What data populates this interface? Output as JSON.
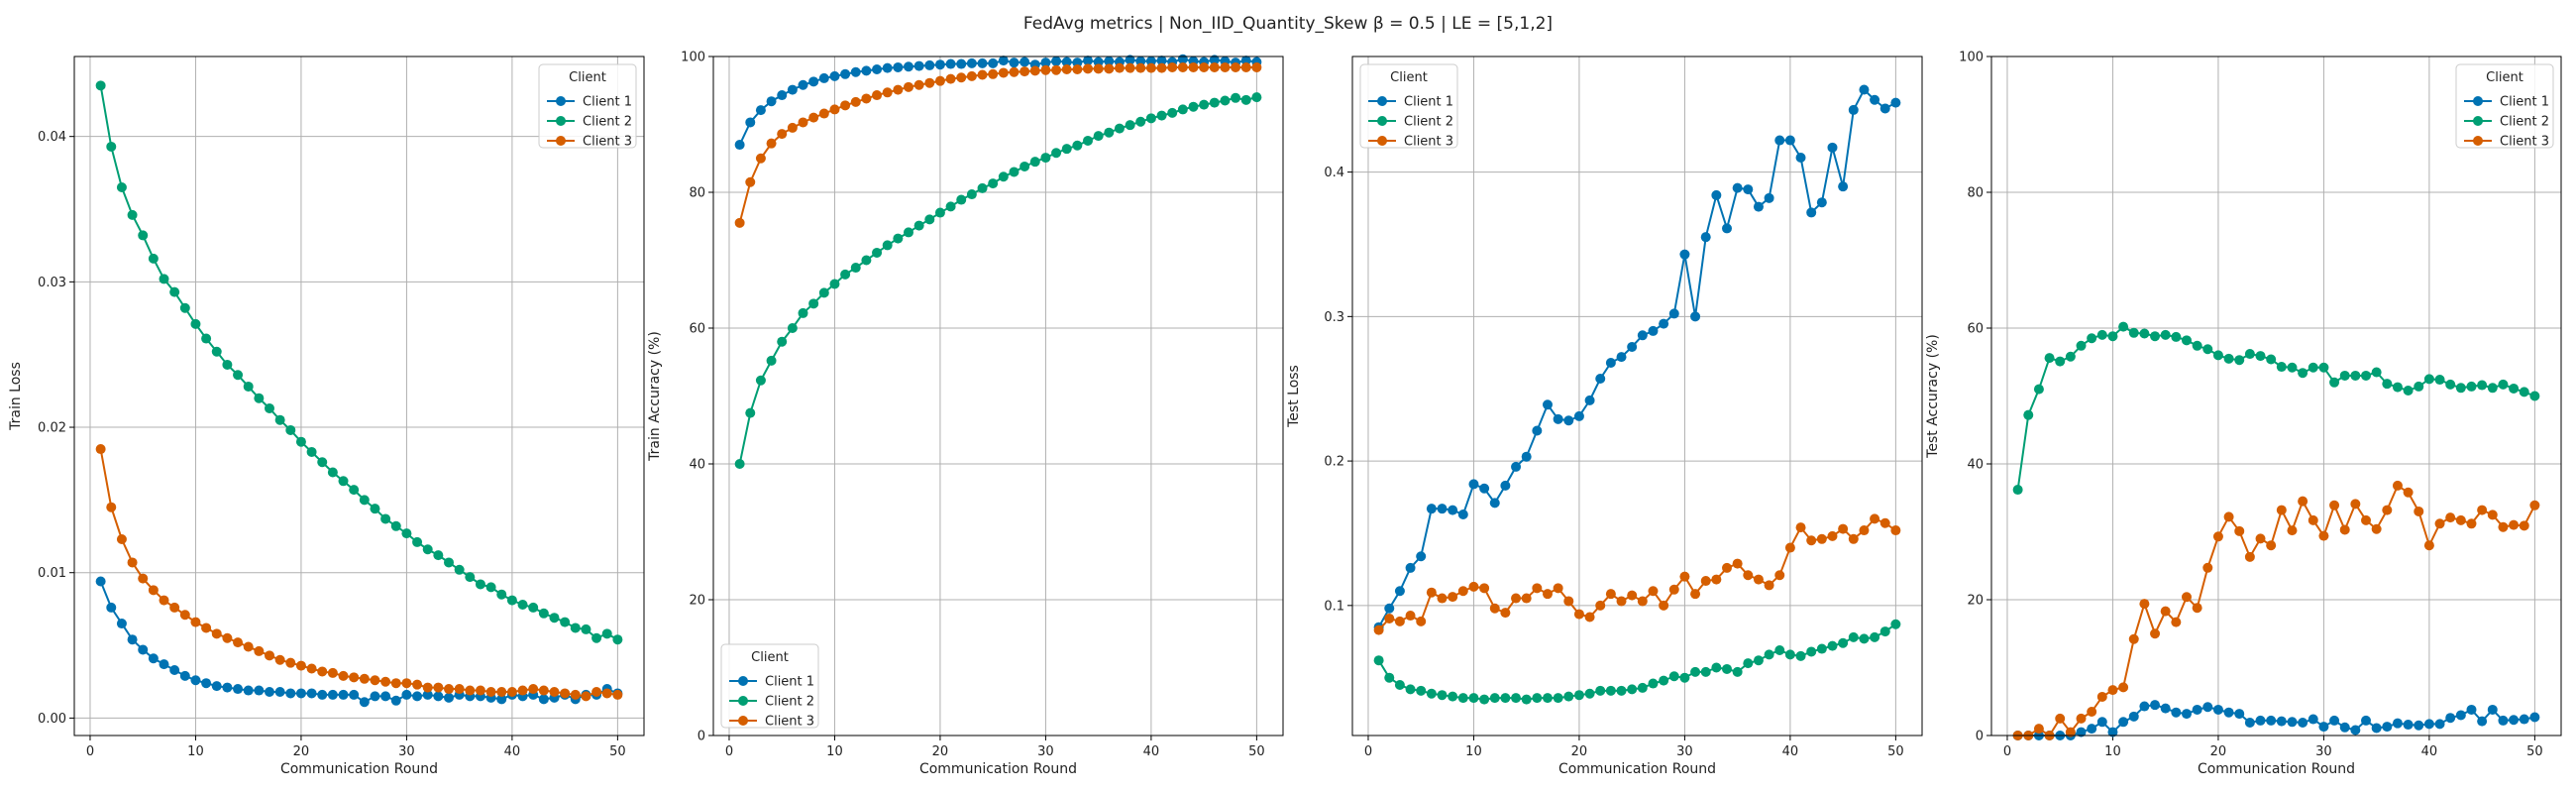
{
  "suptitle": "FedAvg metrics | Non_IID_Quantity_Skew β = 0.5 | LE = [5,1,2]",
  "colors": {
    "Client 1": "#0072b2",
    "Client 2": "#009e73",
    "Client 3": "#d55e00"
  },
  "chart_data": [
    {
      "type": "line",
      "xlabel": "Communication Round",
      "ylabel": "Train Loss",
      "xlim": [
        -1.5,
        52.5
      ],
      "ylim": [
        -0.0012,
        0.0455
      ],
      "xticks": [
        0,
        10,
        20,
        30,
        40,
        50
      ],
      "yticks": [
        0.0,
        0.01,
        0.02,
        0.03,
        0.04
      ],
      "ytick_labels": [
        "0.00",
        "0.01",
        "0.02",
        "0.03",
        "0.04"
      ],
      "legend": {
        "title": "Client",
        "position": "top-right"
      },
      "grid": true,
      "x": [
        1,
        2,
        3,
        4,
        5,
        6,
        7,
        8,
        9,
        10,
        11,
        12,
        13,
        14,
        15,
        16,
        17,
        18,
        19,
        20,
        21,
        22,
        23,
        24,
        25,
        26,
        27,
        28,
        29,
        30,
        31,
        32,
        33,
        34,
        35,
        36,
        37,
        38,
        39,
        40,
        41,
        42,
        43,
        44,
        45,
        46,
        47,
        48,
        49,
        50
      ],
      "series": [
        {
          "name": "Client 1",
          "values": [
            0.0094,
            0.0076,
            0.0065,
            0.0054,
            0.0047,
            0.0041,
            0.0037,
            0.0033,
            0.0029,
            0.0026,
            0.0024,
            0.0022,
            0.0021,
            0.002,
            0.0019,
            0.0019,
            0.0018,
            0.0018,
            0.0017,
            0.0017,
            0.0017,
            0.0016,
            0.0016,
            0.0016,
            0.0016,
            0.0011,
            0.0015,
            0.0015,
            0.0012,
            0.0016,
            0.0015,
            0.0016,
            0.0015,
            0.0014,
            0.0016,
            0.0015,
            0.0015,
            0.0014,
            0.0013,
            0.0016,
            0.0015,
            0.0016,
            0.0013,
            0.0014,
            0.0016,
            0.0013,
            0.0016,
            0.0016,
            0.002,
            0.0017
          ]
        },
        {
          "name": "Client 2",
          "values": [
            0.0435,
            0.0393,
            0.0365,
            0.0346,
            0.0332,
            0.0316,
            0.0302,
            0.0293,
            0.0282,
            0.0271,
            0.0261,
            0.0252,
            0.0243,
            0.0236,
            0.0228,
            0.022,
            0.0213,
            0.0205,
            0.0198,
            0.019,
            0.0183,
            0.0176,
            0.0169,
            0.0163,
            0.0157,
            0.015,
            0.0144,
            0.0137,
            0.0132,
            0.0127,
            0.0121,
            0.0116,
            0.0112,
            0.0107,
            0.0102,
            0.0097,
            0.0092,
            0.009,
            0.0085,
            0.0081,
            0.0078,
            0.0076,
            0.0072,
            0.0069,
            0.0066,
            0.0062,
            0.0061,
            0.0055,
            0.0058,
            0.0054
          ]
        },
        {
          "name": "Client 3",
          "values": [
            0.0185,
            0.0145,
            0.0123,
            0.0107,
            0.0096,
            0.0088,
            0.0081,
            0.0076,
            0.0071,
            0.0066,
            0.0062,
            0.0058,
            0.0055,
            0.0052,
            0.0049,
            0.0046,
            0.0043,
            0.004,
            0.0038,
            0.0036,
            0.0034,
            0.0032,
            0.0031,
            0.0029,
            0.0028,
            0.0027,
            0.0026,
            0.0025,
            0.0024,
            0.0024,
            0.0023,
            0.0021,
            0.0021,
            0.002,
            0.002,
            0.0019,
            0.0019,
            0.0018,
            0.0018,
            0.0018,
            0.0019,
            0.002,
            0.0019,
            0.0018,
            0.0017,
            0.0016,
            0.0015,
            0.0018,
            0.0017,
            0.0016
          ]
        }
      ]
    },
    {
      "type": "line",
      "xlabel": "Communication Round",
      "ylabel": "Train Accuracy (%)",
      "xlim": [
        -1.5,
        52.5
      ],
      "ylim": [
        0,
        100
      ],
      "xticks": [
        0,
        10,
        20,
        30,
        40,
        50
      ],
      "yticks": [
        0,
        20,
        40,
        60,
        80,
        100
      ],
      "ytick_labels": [
        "0",
        "20",
        "40",
        "60",
        "80",
        "100"
      ],
      "legend": {
        "title": "Client",
        "position": "bottom-left"
      },
      "grid": true,
      "x": [
        1,
        2,
        3,
        4,
        5,
        6,
        7,
        8,
        9,
        10,
        11,
        12,
        13,
        14,
        15,
        16,
        17,
        18,
        19,
        20,
        21,
        22,
        23,
        24,
        25,
        26,
        27,
        28,
        29,
        30,
        31,
        32,
        33,
        34,
        35,
        36,
        37,
        38,
        39,
        40,
        41,
        42,
        43,
        44,
        45,
        46,
        47,
        48,
        49,
        50
      ],
      "series": [
        {
          "name": "Client 1",
          "values": [
            87,
            90.3,
            92.1,
            93.4,
            94.3,
            95.1,
            95.8,
            96.3,
            96.8,
            97.1,
            97.4,
            97.7,
            97.9,
            98.1,
            98.3,
            98.4,
            98.5,
            98.6,
            98.7,
            98.8,
            98.9,
            98.9,
            99,
            99,
            99,
            99.4,
            99.1,
            99.2,
            98.8,
            99.1,
            99.3,
            99.2,
            99.1,
            99.4,
            99.2,
            99.3,
            99.2,
            99.5,
            99.3,
            99.3,
            99.4,
            99.2,
            99.6,
            99.3,
            99.2,
            99.5,
            99.3,
            99.1,
            99.4,
            99.2
          ]
        },
        {
          "name": "Client 2",
          "values": [
            40,
            47.5,
            52.3,
            55.2,
            58,
            60,
            62.2,
            63.6,
            65.2,
            66.5,
            67.9,
            68.9,
            70,
            71.1,
            72.2,
            73.2,
            74.1,
            75.1,
            76,
            77,
            77.9,
            78.9,
            79.7,
            80.6,
            81.3,
            82.3,
            83,
            83.8,
            84.5,
            85.1,
            85.8,
            86.4,
            86.9,
            87.6,
            88.3,
            88.8,
            89.4,
            89.9,
            90.4,
            90.9,
            91.3,
            91.7,
            92.2,
            92.6,
            92.9,
            93.2,
            93.5,
            93.9,
            93.6,
            94
          ]
        },
        {
          "name": "Client 3",
          "values": [
            75.5,
            81.5,
            85,
            87.2,
            88.6,
            89.5,
            90.3,
            91,
            91.6,
            92.2,
            92.8,
            93.3,
            93.8,
            94.3,
            94.7,
            95.1,
            95.5,
            95.8,
            96.1,
            96.4,
            96.7,
            96.9,
            97.1,
            97.3,
            97.4,
            97.6,
            97.7,
            97.8,
            97.9,
            98,
            98,
            98.1,
            98.1,
            98.2,
            98.2,
            98.2,
            98.3,
            98.3,
            98.3,
            98.3,
            98.3,
            98.4,
            98.4,
            98.4,
            98.4,
            98.4,
            98.4,
            98.4,
            98.4,
            98.4
          ]
        }
      ]
    },
    {
      "type": "line",
      "xlabel": "Communication Round",
      "ylabel": "Test Loss",
      "xlim": [
        -1.5,
        52.5
      ],
      "ylim": [
        0.01,
        0.48
      ],
      "xticks": [
        0,
        10,
        20,
        30,
        40,
        50
      ],
      "yticks": [
        0.1,
        0.2,
        0.3,
        0.4
      ],
      "ytick_labels": [
        "0.1",
        "0.2",
        "0.3",
        "0.4"
      ],
      "legend": {
        "title": "Client",
        "position": "top-left"
      },
      "grid": true,
      "x": [
        1,
        2,
        3,
        4,
        5,
        6,
        7,
        8,
        9,
        10,
        11,
        12,
        13,
        14,
        15,
        16,
        17,
        18,
        19,
        20,
        21,
        22,
        23,
        24,
        25,
        26,
        27,
        28,
        29,
        30,
        31,
        32,
        33,
        34,
        35,
        36,
        37,
        38,
        39,
        40,
        41,
        42,
        43,
        44,
        45,
        46,
        47,
        48,
        49,
        50
      ],
      "series": [
        {
          "name": "Client 1",
          "values": [
            0.085,
            0.098,
            0.11,
            0.126,
            0.134,
            0.167,
            0.167,
            0.166,
            0.163,
            0.184,
            0.181,
            0.171,
            0.183,
            0.196,
            0.203,
            0.221,
            0.239,
            0.229,
            0.228,
            0.231,
            0.242,
            0.257,
            0.268,
            0.272,
            0.279,
            0.287,
            0.29,
            0.295,
            0.302,
            0.343,
            0.3,
            0.355,
            0.384,
            0.361,
            0.389,
            0.388,
            0.376,
            0.382,
            0.422,
            0.422,
            0.41,
            0.372,
            0.379,
            0.417,
            0.39,
            0.443,
            0.457,
            0.45,
            0.444,
            0.448
          ]
        },
        {
          "name": "Client 2",
          "values": [
            0.062,
            0.05,
            0.045,
            0.042,
            0.041,
            0.039,
            0.038,
            0.037,
            0.036,
            0.036,
            0.035,
            0.036,
            0.036,
            0.036,
            0.035,
            0.036,
            0.036,
            0.036,
            0.037,
            0.038,
            0.039,
            0.041,
            0.041,
            0.041,
            0.042,
            0.043,
            0.046,
            0.048,
            0.051,
            0.05,
            0.054,
            0.054,
            0.057,
            0.056,
            0.054,
            0.06,
            0.062,
            0.066,
            0.069,
            0.066,
            0.065,
            0.068,
            0.07,
            0.072,
            0.074,
            0.078,
            0.077,
            0.078,
            0.082,
            0.087
          ]
        },
        {
          "name": "Client 3",
          "values": [
            0.083,
            0.091,
            0.089,
            0.093,
            0.089,
            0.109,
            0.105,
            0.106,
            0.11,
            0.113,
            0.112,
            0.098,
            0.095,
            0.105,
            0.105,
            0.112,
            0.108,
            0.112,
            0.103,
            0.094,
            0.092,
            0.1,
            0.108,
            0.103,
            0.107,
            0.103,
            0.11,
            0.1,
            0.111,
            0.12,
            0.108,
            0.117,
            0.118,
            0.126,
            0.129,
            0.121,
            0.118,
            0.114,
            0.121,
            0.14,
            0.154,
            0.145,
            0.146,
            0.148,
            0.153,
            0.146,
            0.152,
            0.16,
            0.157,
            0.152
          ]
        }
      ]
    },
    {
      "type": "line",
      "xlabel": "Communication Round",
      "ylabel": "Test Accuracy (%)",
      "xlim": [
        -1.5,
        52.5
      ],
      "ylim": [
        0,
        100
      ],
      "xticks": [
        0,
        10,
        20,
        30,
        40,
        50
      ],
      "yticks": [
        0,
        20,
        40,
        60,
        80,
        100
      ],
      "ytick_labels": [
        "0",
        "20",
        "40",
        "60",
        "80",
        "100"
      ],
      "legend": {
        "title": "Client",
        "position": "top-right"
      },
      "grid": true,
      "x": [
        1,
        2,
        3,
        4,
        5,
        6,
        7,
        8,
        9,
        10,
        11,
        12,
        13,
        14,
        15,
        16,
        17,
        18,
        19,
        20,
        21,
        22,
        23,
        24,
        25,
        26,
        27,
        28,
        29,
        30,
        31,
        32,
        33,
        34,
        35,
        36,
        37,
        38,
        39,
        40,
        41,
        42,
        43,
        44,
        45,
        46,
        47,
        48,
        49,
        50
      ],
      "series": [
        {
          "name": "Client 1",
          "values": [
            0,
            0,
            0,
            0,
            0,
            0,
            0.5,
            1,
            2,
            0.5,
            2,
            2.8,
            4.3,
            4.5,
            4,
            3.4,
            3.2,
            3.8,
            4.2,
            3.8,
            3.4,
            3.2,
            1.9,
            2.2,
            2.2,
            2.1,
            2,
            1.9,
            2.4,
            1.3,
            2.2,
            1.2,
            0.8,
            2.2,
            1.1,
            1.3,
            1.8,
            1.6,
            1.5,
            1.7,
            1.7,
            2.6,
            3,
            3.8,
            2.1,
            3.8,
            2.2,
            2.3,
            2.4,
            2.7
          ]
        },
        {
          "name": "Client 2",
          "values": [
            36.2,
            47.2,
            51,
            55.6,
            55.1,
            55.8,
            57.4,
            58.5,
            59,
            58.8,
            60.2,
            59.3,
            59.2,
            58.8,
            59,
            58.7,
            58.2,
            57.4,
            56.9,
            56,
            55.5,
            55.3,
            56.2,
            55.9,
            55.4,
            54.3,
            54.2,
            53.4,
            54.2,
            54.2,
            52,
            53,
            53,
            53,
            53.5,
            51.8,
            51.3,
            50.8,
            51.4,
            52.5,
            52.4,
            51.7,
            51.2,
            51.4,
            51.6,
            51.2,
            51.7,
            51.1,
            50.6,
            50
          ]
        },
        {
          "name": "Client 3",
          "values": [
            0,
            0,
            1,
            0,
            2.5,
            0.5,
            2.5,
            3.5,
            5.7,
            6.7,
            7.1,
            14.2,
            19.4,
            15,
            18.3,
            16.7,
            20.4,
            18.8,
            24.7,
            29.3,
            32.2,
            30.1,
            26.3,
            29,
            28,
            33.2,
            30.2,
            34.5,
            31.7,
            29.4,
            33.9,
            30.3,
            34.1,
            31.7,
            30.4,
            33.2,
            36.8,
            35.8,
            33,
            28,
            31.2,
            32.1,
            31.7,
            31.2,
            33.2,
            32.5,
            30.7,
            31,
            30.9,
            33.9
          ]
        }
      ]
    }
  ]
}
